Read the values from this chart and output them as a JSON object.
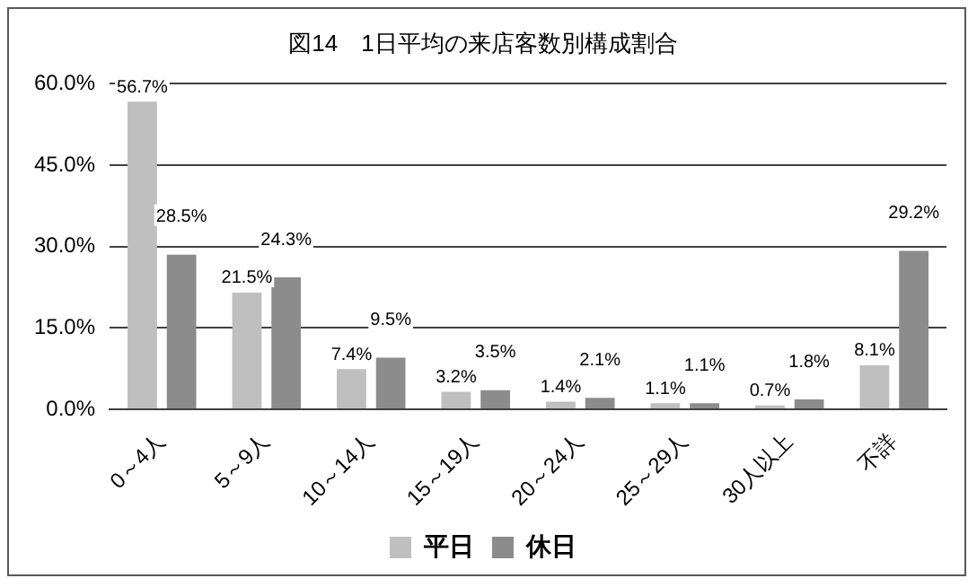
{
  "chart_data": {
    "type": "bar",
    "title": "図14　1日平均の来店客数別構成割合",
    "categories": [
      "0～4人",
      "5～9人",
      "10～14人",
      "15～19人",
      "20～24人",
      "25～29人",
      "30人以上",
      "不詳"
    ],
    "series": [
      {
        "name": "平日",
        "color": "#bfbfbf",
        "values": [
          56.7,
          21.5,
          7.4,
          3.2,
          1.4,
          1.1,
          0.7,
          8.1
        ],
        "value_labels": [
          "56.7%",
          "21.5%",
          "7.4%",
          "3.2%",
          "1.4%",
          "1.1%",
          "0.7%",
          "8.1%"
        ]
      },
      {
        "name": "休日",
        "color": "#8c8c8c",
        "values": [
          28.5,
          24.3,
          9.5,
          3.5,
          2.1,
          1.1,
          1.8,
          29.2
        ],
        "value_labels": [
          "28.5%",
          "24.3%",
          "9.5%",
          "3.5%",
          "2.1%",
          "1.1%",
          "1.8%",
          "29.2%"
        ]
      }
    ],
    "ylim": [
      0,
      60
    ],
    "yticks": [
      {
        "value": 0,
        "label": "0.0%"
      },
      {
        "value": 15,
        "label": "15.0%"
      },
      {
        "value": 30,
        "label": "30.0%"
      },
      {
        "value": 45,
        "label": "45.0%"
      },
      {
        "value": 60,
        "label": "60.0%"
      }
    ],
    "grid": "y",
    "legend": "bottom"
  }
}
